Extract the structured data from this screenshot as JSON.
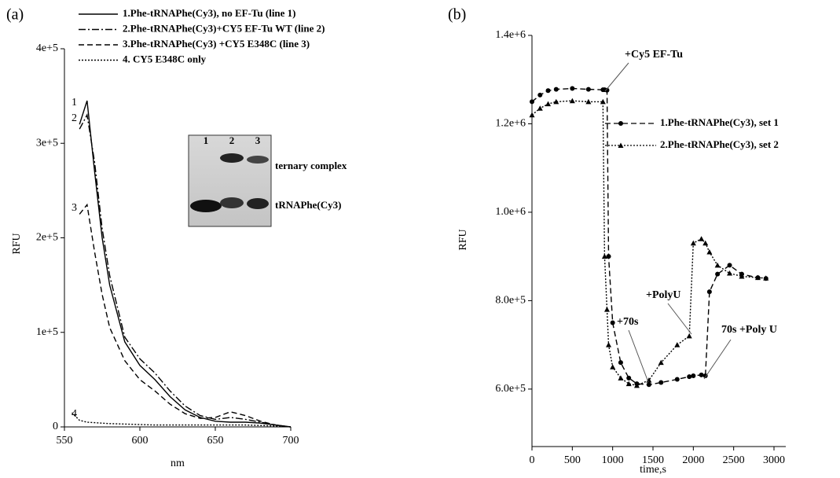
{
  "chart_data": [
    {
      "type": "line",
      "panel_label": "(a)",
      "xlabel": "nm",
      "ylabel": "RFU",
      "x": [
        555,
        560,
        565,
        570,
        575,
        580,
        590,
        600,
        610,
        620,
        630,
        640,
        650,
        660,
        670,
        680,
        690,
        700
      ],
      "series": [
        {
          "name": "1.Phe-tRNAPhe(Cy3), no EF-Tu (line 1)",
          "color": "#000000",
          "dash": "solid",
          "values": [
            null,
            320000,
            345000,
            270000,
            200000,
            150000,
            90000,
            65000,
            50000,
            32000,
            18000,
            10000,
            6000,
            5000,
            5000,
            4000,
            2000,
            0
          ]
        },
        {
          "name": "2.Phe-tRNAPhe(Cy3)+CY5 EF-Tu WT (line 2)",
          "color": "#000000",
          "dash": "dashdot",
          "values": [
            null,
            315000,
            330000,
            280000,
            210000,
            160000,
            95000,
            72000,
            57000,
            38000,
            22000,
            12000,
            8000,
            10000,
            8000,
            5000,
            2000,
            0
          ]
        },
        {
          "name": "3.Phe-tRNAPhe(Cy3) +CY5 E348C (line 3)",
          "color": "#000000",
          "dash": "dash",
          "values": [
            null,
            225000,
            235000,
            185000,
            140000,
            105000,
            70000,
            50000,
            38000,
            24000,
            14000,
            9000,
            10000,
            16000,
            12000,
            6000,
            2000,
            0
          ]
        },
        {
          "name": "4. CY5 E348C only",
          "color": "#000000",
          "dash": "dot",
          "values": [
            15000,
            7000,
            5000,
            4500,
            4000,
            3500,
            3000,
            2500,
            2000,
            2000,
            2000,
            2000,
            2000,
            2000,
            2000,
            1500,
            1000,
            0
          ]
        }
      ],
      "curve_labels": [
        "1",
        "2",
        "3",
        "4"
      ],
      "inset": {
        "lanes": [
          "1",
          "2",
          "3"
        ],
        "labels": [
          "ternary complex",
          "tRNAPhe(Cy3)"
        ]
      },
      "xlim": [
        550,
        700
      ],
      "xticks": [
        550,
        600,
        650,
        700
      ],
      "ylim": [
        0,
        400000
      ],
      "yticks": [
        0,
        {
          "value": 100000,
          "label": "1e+5"
        },
        {
          "value": 200000,
          "label": "2e+5"
        },
        {
          "value": 300000,
          "label": "3e+5"
        },
        {
          "value": 400000,
          "label": "4e+5"
        }
      ]
    },
    {
      "type": "line",
      "panel_label": "(b)",
      "xlabel": "time,s",
      "ylabel": "RFU",
      "x": [
        0,
        100,
        200,
        300,
        500,
        700,
        880,
        900,
        930,
        950,
        1000,
        1100,
        1200,
        1300,
        1450,
        1600,
        1800,
        1950,
        2000,
        2100,
        2150,
        2200,
        2300,
        2450,
        2600,
        2800,
        2900
      ],
      "series": [
        {
          "name": "1.Phe-tRNAPhe(Cy3), set 1",
          "color": "#000000",
          "dash": "dash",
          "marker": "circle",
          "values": [
            1250000,
            1265000,
            1275000,
            1278000,
            1280000,
            1278000,
            1277000,
            1277000,
            1276000,
            900000,
            750000,
            660000,
            625000,
            612000,
            610000,
            615000,
            622000,
            628000,
            630000,
            632000,
            630000,
            820000,
            860000,
            880000,
            860000,
            852000,
            850000
          ]
        },
        {
          "name": "2.Phe-tRNAPhe(Cy3), set 2",
          "color": "#000000",
          "dash": "dot",
          "marker": "triangle",
          "values": [
            1220000,
            1235000,
            1245000,
            1250000,
            1252000,
            1250000,
            1250000,
            900000,
            780000,
            700000,
            650000,
            625000,
            612000,
            608000,
            620000,
            660000,
            700000,
            720000,
            930000,
            940000,
            930000,
            910000,
            880000,
            862000,
            855000,
            852000,
            851000
          ]
        }
      ],
      "annotations": [
        "+Cy5 EF-Tu",
        "+PolyU",
        "+70s",
        "70s +Poly U"
      ],
      "xlim": [
        0,
        3000
      ],
      "xticks": [
        0,
        500,
        1000,
        1500,
        2000,
        2500,
        3000
      ],
      "ylim": [
        470000,
        1400000
      ],
      "yticks": [
        {
          "value": 600000,
          "label": "6.0e+5"
        },
        {
          "value": 800000,
          "label": "8.0e+5"
        },
        {
          "value": 1000000,
          "label": "1.0e+6"
        },
        {
          "value": 1200000,
          "label": "1.2e+6"
        },
        {
          "value": 1400000,
          "label": "1.4e+6"
        }
      ]
    }
  ]
}
